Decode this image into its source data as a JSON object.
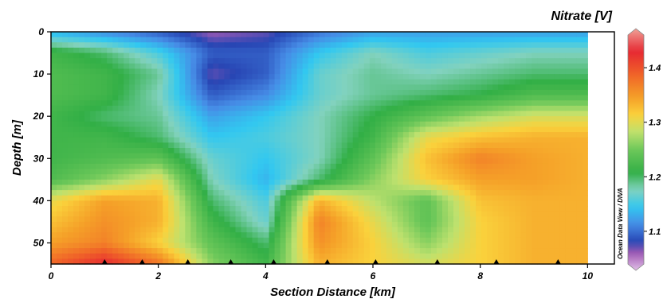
{
  "chart_data": {
    "type": "heatmap",
    "title": "Nitrate [V]",
    "xlabel": "Section Distance [km]",
    "ylabel": "Depth [m]",
    "xlim": [
      0,
      10.5
    ],
    "ylim": [
      55,
      0
    ],
    "x_ticks": [
      0,
      2,
      4,
      6,
      8,
      10
    ],
    "y_ticks": [
      0,
      10,
      20,
      30,
      40,
      50
    ],
    "colorbar": {
      "ticks": [
        1.1,
        1.2,
        1.3,
        1.4
      ],
      "range": [
        1.04,
        1.46
      ],
      "side_label": "Ocean Data View / DIVA"
    },
    "station_x_km": [
      1.0,
      1.7,
      2.55,
      3.35,
      4.15,
      5.15,
      6.05,
      7.2,
      8.3,
      9.45
    ],
    "x": [
      0,
      1,
      2,
      3,
      4,
      5,
      6,
      7,
      8,
      9,
      10
    ],
    "y": [
      0,
      5,
      10,
      15,
      20,
      25,
      30,
      35,
      40,
      45,
      50,
      55
    ],
    "z": [
      [
        1.14,
        1.12,
        1.1,
        1.07,
        1.08,
        1.11,
        1.13,
        1.13,
        1.13,
        1.13,
        1.13
      ],
      [
        1.22,
        1.2,
        1.16,
        1.1,
        1.1,
        1.15,
        1.18,
        1.16,
        1.17,
        1.18,
        1.18
      ],
      [
        1.23,
        1.22,
        1.19,
        1.08,
        1.1,
        1.17,
        1.19,
        1.18,
        1.19,
        1.2,
        1.2
      ],
      [
        1.23,
        1.22,
        1.18,
        1.1,
        1.12,
        1.17,
        1.19,
        1.2,
        1.21,
        1.23,
        1.23
      ],
      [
        1.22,
        1.2,
        1.19,
        1.13,
        1.15,
        1.18,
        1.21,
        1.24,
        1.27,
        1.29,
        1.29
      ],
      [
        1.22,
        1.22,
        1.2,
        1.15,
        1.16,
        1.18,
        1.22,
        1.3,
        1.32,
        1.33,
        1.33
      ],
      [
        1.22,
        1.23,
        1.24,
        1.17,
        1.15,
        1.18,
        1.24,
        1.32,
        1.36,
        1.34,
        1.33
      ],
      [
        1.23,
        1.26,
        1.3,
        1.18,
        1.14,
        1.2,
        1.26,
        1.31,
        1.34,
        1.34,
        1.33
      ],
      [
        1.3,
        1.34,
        1.33,
        1.2,
        1.16,
        1.33,
        1.28,
        1.24,
        1.32,
        1.33,
        1.33
      ],
      [
        1.32,
        1.35,
        1.33,
        1.22,
        1.17,
        1.36,
        1.3,
        1.24,
        1.31,
        1.33,
        1.33
      ],
      [
        1.34,
        1.36,
        1.31,
        1.24,
        1.2,
        1.35,
        1.31,
        1.26,
        1.31,
        1.33,
        1.33
      ],
      [
        1.38,
        1.42,
        1.37,
        1.26,
        1.22,
        1.33,
        1.31,
        1.29,
        1.31,
        1.33,
        1.33
      ]
    ]
  }
}
